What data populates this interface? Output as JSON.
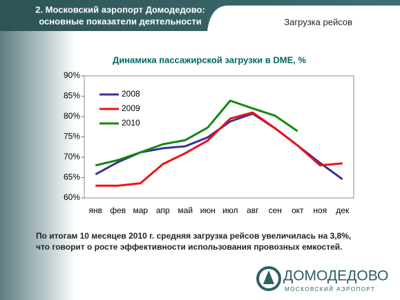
{
  "header": {
    "title": [
      "2. Московский аэропорт Домодедово:",
      "основные показатели деятельности"
    ],
    "section": "Загрузка рейсов"
  },
  "chart_data": {
    "type": "line",
    "title": "Динамика пассажирской загрузки в DME, %",
    "categories": [
      "янв",
      "фев",
      "мар",
      "апр",
      "май",
      "июн",
      "июл",
      "авг",
      "сен",
      "окт",
      "ноя",
      "дек"
    ],
    "series": [
      {
        "name": "2008",
        "color": "#333399",
        "values": [
          65.8,
          68.8,
          71.2,
          72.2,
          72.7,
          74.9,
          78.8,
          80.7,
          77.1,
          72.9,
          68.6,
          64.6
        ]
      },
      {
        "name": "2009",
        "color": "#ee1111",
        "values": [
          63.0,
          63.0,
          63.6,
          68.3,
          71.0,
          74.1,
          79.5,
          81.0,
          77.1,
          72.9,
          68.0,
          68.5
        ]
      },
      {
        "name": "2010",
        "color": "#118811",
        "values": [
          68.0,
          69.3,
          71.2,
          73.2,
          74.2,
          77.3,
          83.9,
          82.0,
          80.2,
          76.4,
          null,
          null
        ]
      }
    ],
    "ylim": [
      60,
      90
    ],
    "yticks": [
      {
        "value": 60,
        "label": "60%"
      },
      {
        "value": 65,
        "label": "65%"
      },
      {
        "value": 70,
        "label": "70%"
      },
      {
        "value": 75,
        "label": "75%"
      },
      {
        "value": 80,
        "label": "80%"
      },
      {
        "value": 85,
        "label": "85%"
      },
      {
        "value": 90,
        "label": "90%"
      }
    ],
    "legend": "upper left"
  },
  "footnote": [
    "По итогам 10 месяцев 2010 г. средняя загрузка рейсов увеличилась на 3,8%,",
    "что говорит о росте эффективности использования провозных емкостей."
  ],
  "logo": {
    "name": "ДОМОДЕДОВО",
    "tagline": "МОСКОВСКИЙ АЭРОПОРТ"
  }
}
